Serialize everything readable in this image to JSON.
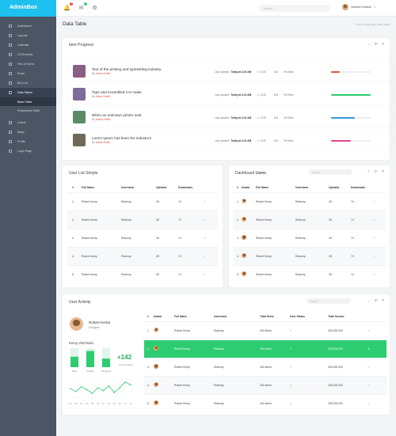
{
  "app": {
    "brand_a": "Admin",
    "brand_b": "Box"
  },
  "sidebar": {
    "items": [
      "Dashboard",
      "Layouts",
      "Calendar",
      "UI Elements",
      "Text & Forms",
      "Email",
      "Box List",
      "Data Tables",
      "Basic Table",
      "Responsive Table",
      "Charts",
      "Maps",
      "Profile",
      "Login Page"
    ]
  },
  "topbar": {
    "search_placeholder": "Search...",
    "user_name": "Wedhell Kadhan",
    "badge1": "5",
    "badge2": "3"
  },
  "page": {
    "title": "Data Table",
    "breadcrumb": "Home / Data Table / Basic Table"
  },
  "progress": {
    "title": "Item Progress",
    "by": "By",
    "updated_label": "Last updated",
    "updated_value": "Today at 4:24 AM",
    "duration": "10:30",
    "comments": "624",
    "rate_label": "Hit Ratio",
    "items": [
      {
        "title": "Text of the printing and typesetting industry.",
        "author": "Adam Smith",
        "pct": 0.22,
        "color": "#e74c3c"
      },
      {
        "title": "Type and scrambled it to make.",
        "author": "Adam Smith",
        "pct": 1.0,
        "color": "#2ecc71"
      },
      {
        "title": "When an unknown printer took.",
        "author": "Adam Smith",
        "pct": 0.6,
        "color": "#3498db"
      },
      {
        "title": "Lorem Ipsum has been the industry's",
        "author": "Adam Smith",
        "pct": 0.5,
        "color": "#e84393"
      }
    ]
  },
  "user_list": {
    "title": "User List Simple",
    "headers": [
      "#",
      "Full Name",
      "Username",
      "Uploads",
      "Downloads"
    ],
    "rows": [
      [
        "1.",
        "Robert Kemp",
        "Rokemp",
        "28",
        "74"
      ],
      [
        "2.",
        "Robert Kemp",
        "Rokemp",
        "28",
        "74"
      ],
      [
        "3.",
        "Robert Kemp",
        "Rokemp",
        "28",
        "74"
      ],
      [
        "4.",
        "Robert Kemp",
        "Rokemp",
        "28",
        "74"
      ],
      [
        "5.",
        "Robert Kemp",
        "Rokemp",
        "28",
        "74"
      ]
    ]
  },
  "dashboard_users": {
    "title_a": "Dashboard",
    "title_b": "Users",
    "search_placeholder": "Search",
    "headers": [
      "#",
      "Avatar",
      "Full Name",
      "Username",
      "Uploads",
      "Downloads"
    ],
    "rows": [
      [
        "1.",
        "Robert Kemp",
        "Rokemp",
        "28",
        "74"
      ],
      [
        "2.",
        "Robert Kemp",
        "Rokemp",
        "28",
        "74"
      ],
      [
        "3.",
        "Robert Kemp",
        "Rokemp",
        "28",
        "74"
      ],
      [
        "4.",
        "Robert Kemp",
        "Rokemp",
        "28",
        "74"
      ],
      [
        "5.",
        "Robert Kemp",
        "Rokemp",
        "28",
        "74"
      ]
    ]
  },
  "activity": {
    "title": "User Activity",
    "search_placeholder": "Search",
    "profile_name": "Robert Kemp",
    "profile_role": "Designer",
    "visit_title": "Kemp Visit Ratio",
    "big_value": "+142",
    "big_label": "Last 30 Days",
    "bars": [
      {
        "label": "Start",
        "value": 0.55
      },
      {
        "label": "Activity",
        "value": 0.85
      },
      {
        "label": "Shopping",
        "value": 0.45
      }
    ],
    "line_values": [
      0.45,
      0.3,
      0.55,
      0.4,
      0.2,
      0.5,
      0.35,
      0.6,
      0.25,
      0.5,
      0.8,
      0.65
    ],
    "line_labels": [
      "01",
      "02",
      "03",
      "04",
      "05",
      "06",
      "07",
      "08",
      "09",
      "10",
      "11",
      "12"
    ],
    "headers": [
      "#",
      "Avatar",
      "Full Name",
      "Username",
      "Total Items",
      "User Status",
      "Total Income"
    ],
    "rows": [
      [
        "1.",
        "Robert Kemp",
        "Rokemp",
        "304 Items",
        "✓",
        "230,000,000"
      ],
      [
        "2.",
        "Robert Kemp",
        "Rokemp",
        "304 Items",
        "✓",
        "230,000,000"
      ],
      [
        "3.",
        "Robert Kemp",
        "Rokemp",
        "304 Items",
        "✓",
        "230,000,000"
      ],
      [
        "4.",
        "Robert Kemp",
        "Rokemp",
        "304 Items",
        "✓",
        "230,000,000"
      ],
      [
        "5.",
        "Robert Kemp",
        "Rokemp",
        "304 Items",
        "✓",
        "230,000,000"
      ]
    ],
    "highlight_row": 1
  }
}
